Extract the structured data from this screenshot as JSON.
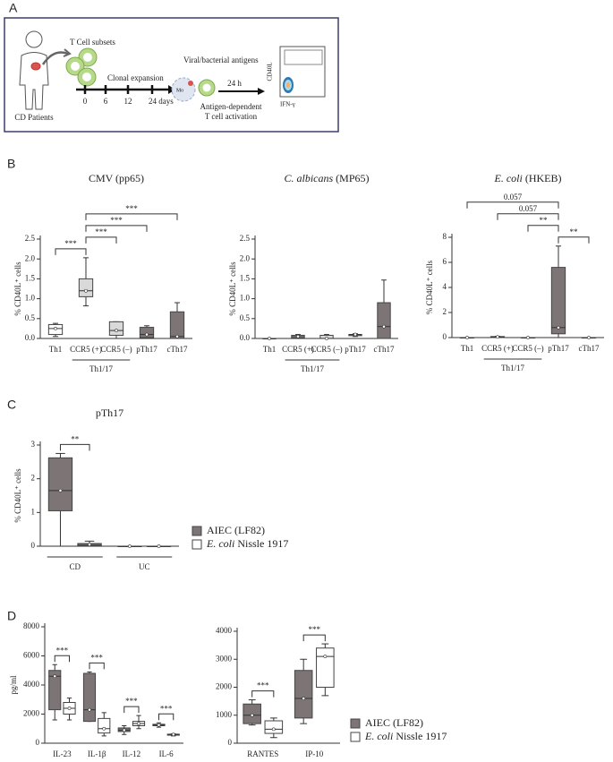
{
  "panel_labels": [
    "A",
    "B",
    "C",
    "D"
  ],
  "panel_a": {
    "patients": "CD Patients",
    "subsets": "T Cell subsets",
    "expansion": "Clonal expansion",
    "timepoints": [
      "0",
      "6",
      "12",
      "24 days"
    ],
    "antigens": "Viral/bacterial antigens",
    "monocyte": "Mo",
    "incubation": "24 h",
    "activation": [
      "Antigen-dependent",
      "T cell activation"
    ],
    "flow_y": "CD40L",
    "flow_x": "IFN-γ"
  },
  "chart_data": [
    {
      "type": "box",
      "title": "CMV (pp65)",
      "ylabel": "% CD40L⁺ cells",
      "categories": [
        "Th1",
        "CCR5 (+)",
        "CCR5 (–)",
        "pTh17",
        "cTh17"
      ],
      "series": [
        {
          "colors": [
            "#ffffff",
            "#d9d9d9",
            "#d9d9d9",
            "#7d7575",
            "#7d7575"
          ],
          "boxes": [
            {
              "min": 0.05,
              "q1": 0.1,
              "median": 0.25,
              "q3": 0.35,
              "max": 0.38
            },
            {
              "min": 0.82,
              "q1": 1.05,
              "median": 1.2,
              "q3": 1.5,
              "max": 2.03
            },
            {
              "min": 0,
              "q1": 0.08,
              "median": 0.2,
              "q3": 0.42,
              "max": 0.42
            },
            {
              "min": 0,
              "q1": 0.02,
              "median": 0.1,
              "q3": 0.28,
              "max": 0.32
            },
            {
              "min": 0,
              "q1": 0,
              "median": 0.05,
              "q3": 0.67,
              "max": 0.9
            }
          ]
        }
      ],
      "groups": [
        {
          "label": "Th1/17",
          "categories": [
            "CCR5 (+)",
            "CCR5 (–)"
          ]
        }
      ],
      "brackets": [
        {
          "between": [
            "Th1",
            "CCR5 (+)"
          ],
          "label": "***"
        },
        {
          "between": [
            "CCR5 (+)",
            "CCR5 (–)"
          ],
          "label": "***"
        },
        {
          "between": [
            "CCR5 (+)",
            "pTh17"
          ],
          "label": "***"
        },
        {
          "between": [
            "CCR5 (+)",
            "cTh17"
          ],
          "label": "***"
        }
      ],
      "ylim": [
        0,
        2.5
      ],
      "yticks": [
        {
          "value": 0,
          "label": "0.0"
        },
        0.5,
        {
          "value": 1,
          "label": "1.0"
        },
        1.5,
        {
          "value": 2,
          "label": "2.0"
        },
        2.5
      ]
    },
    {
      "type": "box",
      "title": [
        {
          "text": "C. albicans",
          "italic": true
        },
        {
          "text": " (MP65)"
        }
      ],
      "ylabel": "% CD40L⁺ cells",
      "categories": [
        "Th1",
        "CCR5 (+)",
        "CCR5 (–)",
        "pTh17",
        "cTh17"
      ],
      "series": [
        {
          "colors": [
            "#ffffff",
            "#d9d9d9",
            "#d9d9d9",
            "#7d7575",
            "#7d7575"
          ],
          "boxes": [
            {
              "min": 0,
              "q1": 0,
              "median": 0,
              "q3": 0,
              "max": 0
            },
            {
              "min": 0,
              "q1": 0.02,
              "median": 0.05,
              "q3": 0.08,
              "max": 0.1
            },
            {
              "min": 0,
              "q1": 0,
              "median": 0,
              "q3": 0.08,
              "max": 0.1
            },
            {
              "min": 0.05,
              "q1": 0.07,
              "median": 0.1,
              "q3": 0.1,
              "max": 0.12
            },
            {
              "min": 0,
              "q1": 0,
              "median": 0.3,
              "q3": 0.9,
              "max": 1.47
            }
          ]
        }
      ],
      "groups": [
        {
          "label": "Th1/17",
          "categories": [
            "CCR5 (+)",
            "CCR5 (–)"
          ]
        }
      ],
      "brackets": [],
      "ylim": [
        0,
        2.5
      ],
      "yticks": [
        {
          "value": 0,
          "label": "0.0"
        },
        0.5,
        {
          "value": 1,
          "label": "1.0"
        },
        1.5,
        {
          "value": 2,
          "label": "2.0"
        },
        2.5
      ]
    },
    {
      "type": "box",
      "title": [
        {
          "text": "E. coli",
          "italic": true
        },
        {
          "text": " (HKEB)"
        }
      ],
      "ylabel": "% CD40L⁺ cells",
      "categories": [
        "Th1",
        "CCR5 (+)",
        "CCR5 (–)",
        "pTh17",
        "cTh17"
      ],
      "series": [
        {
          "colors": [
            "#ffffff",
            "#d9d9d9",
            "#d9d9d9",
            "#7d7575",
            "#7d7575"
          ],
          "boxes": [
            {
              "min": 0,
              "q1": 0,
              "median": 0,
              "q3": 0,
              "max": 0
            },
            {
              "min": 0,
              "q1": 0,
              "median": 0.05,
              "q3": 0.08,
              "max": 0.1
            },
            {
              "min": 0,
              "q1": 0,
              "median": 0,
              "q3": 0,
              "max": 0
            },
            {
              "min": 0,
              "q1": 0.3,
              "median": 0.8,
              "q3": 5.6,
              "max": 7.3
            },
            {
              "min": 0,
              "q1": 0,
              "median": 0,
              "q3": 0,
              "max": 0
            }
          ]
        }
      ],
      "groups": [
        {
          "label": "Th1/17",
          "categories": [
            "CCR5 (+)",
            "CCR5 (–)"
          ]
        }
      ],
      "brackets": [
        {
          "between": [
            "pTh17",
            "cTh17"
          ],
          "label": "**"
        },
        {
          "between": [
            "CCR5 (–)",
            "pTh17"
          ],
          "label": "**"
        },
        {
          "between": [
            "CCR5 (+)",
            "pTh17"
          ],
          "label": "0.057"
        },
        {
          "between": [
            "Th1",
            "pTh17"
          ],
          "label": "0.057"
        }
      ],
      "ylim": [
        0,
        8
      ],
      "yticks": [
        0,
        2,
        4,
        6,
        8
      ]
    },
    {
      "type": "box",
      "title": "pTh17",
      "ylabel": "% CD40L⁺ cells",
      "categories": [
        "CD",
        "UC"
      ],
      "series": [
        {
          "name": "AIEC (LF82)",
          "color": "#7d7575",
          "boxes": [
            {
              "min": 0,
              "q1": 1.05,
              "median": 1.65,
              "q3": 2.62,
              "max": 2.75
            },
            {
              "min": 0,
              "q1": 0,
              "median": 0,
              "q3": 0,
              "max": 0
            }
          ]
        },
        {
          "name": [
            {
              "text": "E. coli",
              "italic": true
            },
            {
              "text": " Nissle 1917"
            }
          ],
          "color": "#ffffff",
          "boxes": [
            {
              "min": 0,
              "q1": 0.02,
              "median": 0.05,
              "q3": 0.08,
              "max": 0.15
            },
            {
              "min": 0,
              "q1": 0,
              "median": 0,
              "q3": 0,
              "max": 0
            }
          ]
        }
      ],
      "brackets": [
        {
          "category": "CD",
          "label": "**"
        }
      ],
      "ylim": [
        0,
        3
      ],
      "yticks": [
        0,
        1,
        2,
        3
      ]
    },
    {
      "type": "box",
      "ylabel": "pg/ml",
      "categories": [
        "IL-23",
        "IL-1β",
        "IL-12",
        "IL-6"
      ],
      "series": [
        {
          "color": "#7d7575",
          "boxes": [
            {
              "min": 1600,
              "q1": 2300,
              "median": 4600,
              "q3": 5000,
              "max": 5400
            },
            {
              "min": 1500,
              "q1": 1500,
              "median": 2300,
              "q3": 4800,
              "max": 4900
            },
            {
              "min": 600,
              "q1": 800,
              "median": 900,
              "q3": 1050,
              "max": 1200
            },
            {
              "min": 1100,
              "q1": 1200,
              "median": 1250,
              "q3": 1300,
              "max": 1400
            }
          ]
        },
        {
          "color": "#ffffff",
          "boxes": [
            {
              "min": 1600,
              "q1": 2000,
              "median": 2400,
              "q3": 2800,
              "max": 3100
            },
            {
              "min": 500,
              "q1": 700,
              "median": 1000,
              "q3": 1700,
              "max": 2100
            },
            {
              "min": 1000,
              "q1": 1200,
              "median": 1350,
              "q3": 1500,
              "max": 1900
            },
            {
              "min": 500,
              "q1": 550,
              "median": 600,
              "q3": 620,
              "max": 650
            }
          ]
        }
      ],
      "brackets": [
        {
          "category": "IL-23",
          "label": "***"
        },
        {
          "category": "IL-1β",
          "label": "***"
        },
        {
          "category": "IL-12",
          "label": "***"
        },
        {
          "category": "IL-6",
          "label": "***"
        }
      ],
      "ylim": [
        0,
        8000
      ],
      "yticks": [
        0,
        2000,
        4000,
        6000,
        8000
      ]
    },
    {
      "type": "box",
      "categories": [
        "RANTES",
        "IP-10"
      ],
      "series": [
        {
          "name": "AIEC (LF82)",
          "color": "#7d7575",
          "boxes": [
            {
              "min": 650,
              "q1": 700,
              "median": 1000,
              "q3": 1400,
              "max": 1550
            },
            {
              "min": 700,
              "q1": 900,
              "median": 1600,
              "q3": 2600,
              "max": 3000
            }
          ]
        },
        {
          "name": [
            {
              "text": "E. coli",
              "italic": true
            },
            {
              "text": " Nissle 1917"
            }
          ],
          "color": "#ffffff",
          "boxes": [
            {
              "min": 200,
              "q1": 350,
              "median": 500,
              "q3": 800,
              "max": 900
            },
            {
              "min": 1700,
              "q1": 2000,
              "median": 3100,
              "q3": 3400,
              "max": 3550
            }
          ]
        }
      ],
      "brackets": [
        {
          "category": "RANTES",
          "label": "***"
        },
        {
          "category": "IP-10",
          "label": "***"
        }
      ],
      "ylim": [
        0,
        4000
      ],
      "yticks": [
        0,
        1000,
        2000,
        3000,
        4000
      ]
    }
  ]
}
